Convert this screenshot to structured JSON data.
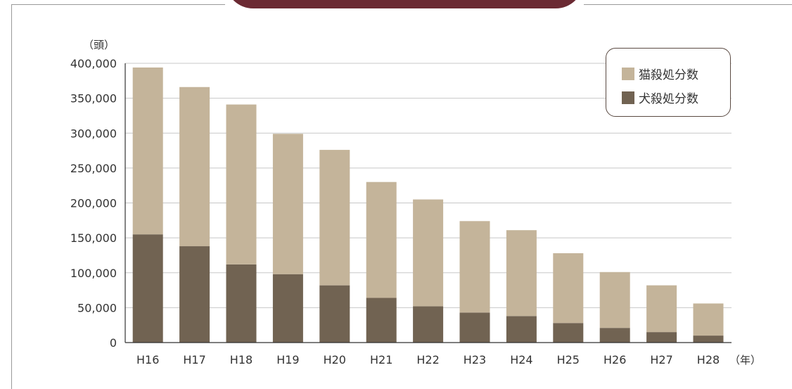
{
  "chart_data": {
    "type": "bar",
    "stacked": true,
    "categories": [
      "H16",
      "H17",
      "H18",
      "H19",
      "H20",
      "H21",
      "H22",
      "H23",
      "H24",
      "H25",
      "H26",
      "H27",
      "H28"
    ],
    "series": [
      {
        "name": "犬殺処分数",
        "color": "#716352",
        "values": [
          155000,
          138000,
          112000,
          98000,
          82000,
          64000,
          52000,
          43000,
          38000,
          28000,
          21000,
          15000,
          10000
        ]
      },
      {
        "name": "猫殺処分数",
        "color": "#c4b49a",
        "values": [
          239000,
          228000,
          229000,
          201000,
          194000,
          166000,
          153000,
          131000,
          123000,
          100000,
          80000,
          67000,
          46000
        ]
      }
    ],
    "ylim": [
      0,
      400000
    ],
    "yticks": [
      0,
      50000,
      100000,
      150000,
      200000,
      250000,
      300000,
      350000,
      400000
    ],
    "ytick_labels": [
      "0",
      "50,000",
      "100,000",
      "150,000",
      "200,000",
      "250,000",
      "300,000",
      "350,000",
      "400,000"
    ],
    "y_unit": "（頭）",
    "x_unit": "（年）",
    "grid": true,
    "legend_position": "top-right",
    "legend": [
      {
        "label": "猫殺処分数",
        "color": "#c4b49a"
      },
      {
        "label": "犬殺処分数",
        "color": "#716352"
      }
    ]
  },
  "colors": {
    "title_tab": "#6b2a33",
    "gridline": "#c8c8c8",
    "axis": "#333333",
    "frame": "#9a9a9a"
  }
}
